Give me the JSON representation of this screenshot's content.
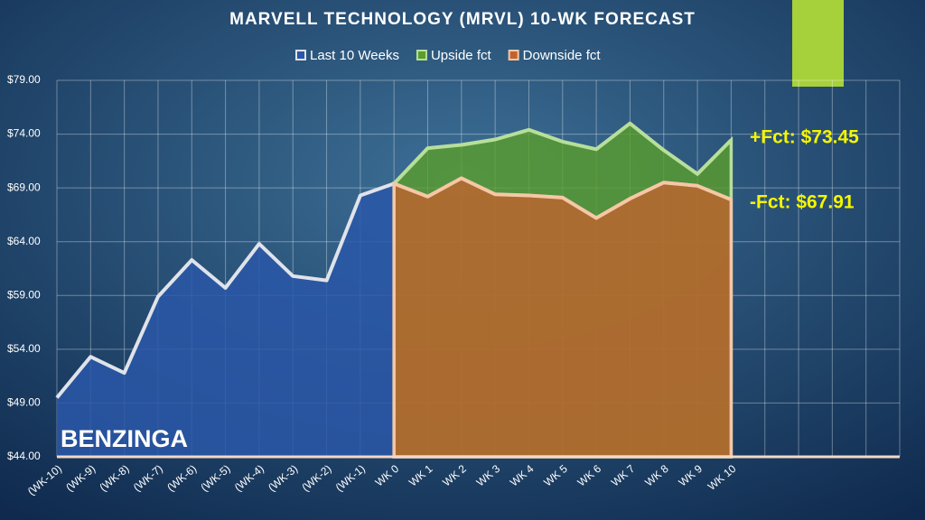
{
  "chart_data": {
    "type": "area",
    "title": "MARVELL TECHNOLOGY (MRVL) 10-WK FORECAST",
    "categories": [
      "(WK-10)",
      "(WK-9)",
      "(WK-8)",
      "(WK-7)",
      "(WK-6)",
      "(WK-5)",
      "(WK-4)",
      "(WK-3)",
      "(WK-2)",
      "(WK-1)",
      "WK 0",
      "WK 1",
      "WK 2",
      "WK 3",
      "WK 4",
      "WK 5",
      "WK 6",
      "WK 7",
      "WK 8",
      "WK 9",
      "WK 10",
      null,
      null,
      null,
      null,
      null
    ],
    "series": [
      {
        "name": "Last 10 Weeks",
        "color": "#2a57a8",
        "line_color": "#dfe3ea",
        "values": [
          49.5,
          53.3,
          51.8,
          58.9,
          62.3,
          59.7,
          63.8,
          60.8,
          60.4,
          68.3,
          69.4,
          null,
          null,
          null,
          null,
          null,
          null,
          null,
          null,
          null,
          null,
          null,
          null,
          null,
          null,
          null
        ]
      },
      {
        "name": "Upside fct",
        "color": "#5a9e2a",
        "line_color": "#b7df9a",
        "values": [
          null,
          null,
          null,
          null,
          null,
          null,
          null,
          null,
          null,
          null,
          69.4,
          72.7,
          73.0,
          73.5,
          74.4,
          73.3,
          72.6,
          75.0,
          72.5,
          70.3,
          73.45,
          null,
          null,
          null,
          null,
          null
        ]
      },
      {
        "name": "Downside fct",
        "color": "#c2632e",
        "line_color": "#f6c7a6",
        "values": [
          null,
          null,
          null,
          null,
          null,
          null,
          null,
          null,
          null,
          null,
          69.4,
          68.2,
          69.9,
          68.4,
          68.3,
          68.1,
          66.2,
          68.0,
          69.5,
          69.2,
          67.91,
          null,
          null,
          null,
          null,
          null
        ]
      }
    ],
    "ylim": [
      44,
      79
    ],
    "yticks": [
      {
        "value": 44,
        "label": "$44.00"
      },
      {
        "value": 49,
        "label": "$49.00"
      },
      {
        "value": 54,
        "label": "$54.00"
      },
      {
        "value": 59,
        "label": "$59.00"
      },
      {
        "value": 64,
        "label": "$64.00"
      },
      {
        "value": 69,
        "label": "$69.00"
      },
      {
        "value": 74,
        "label": "$74.00"
      },
      {
        "value": 79,
        "label": "$79.00"
      }
    ],
    "grid": true,
    "legend": "top",
    "annotations": [
      "+Fct: $73.45",
      "-Fct: $67.91"
    ],
    "watermark": "BENZINGA"
  }
}
